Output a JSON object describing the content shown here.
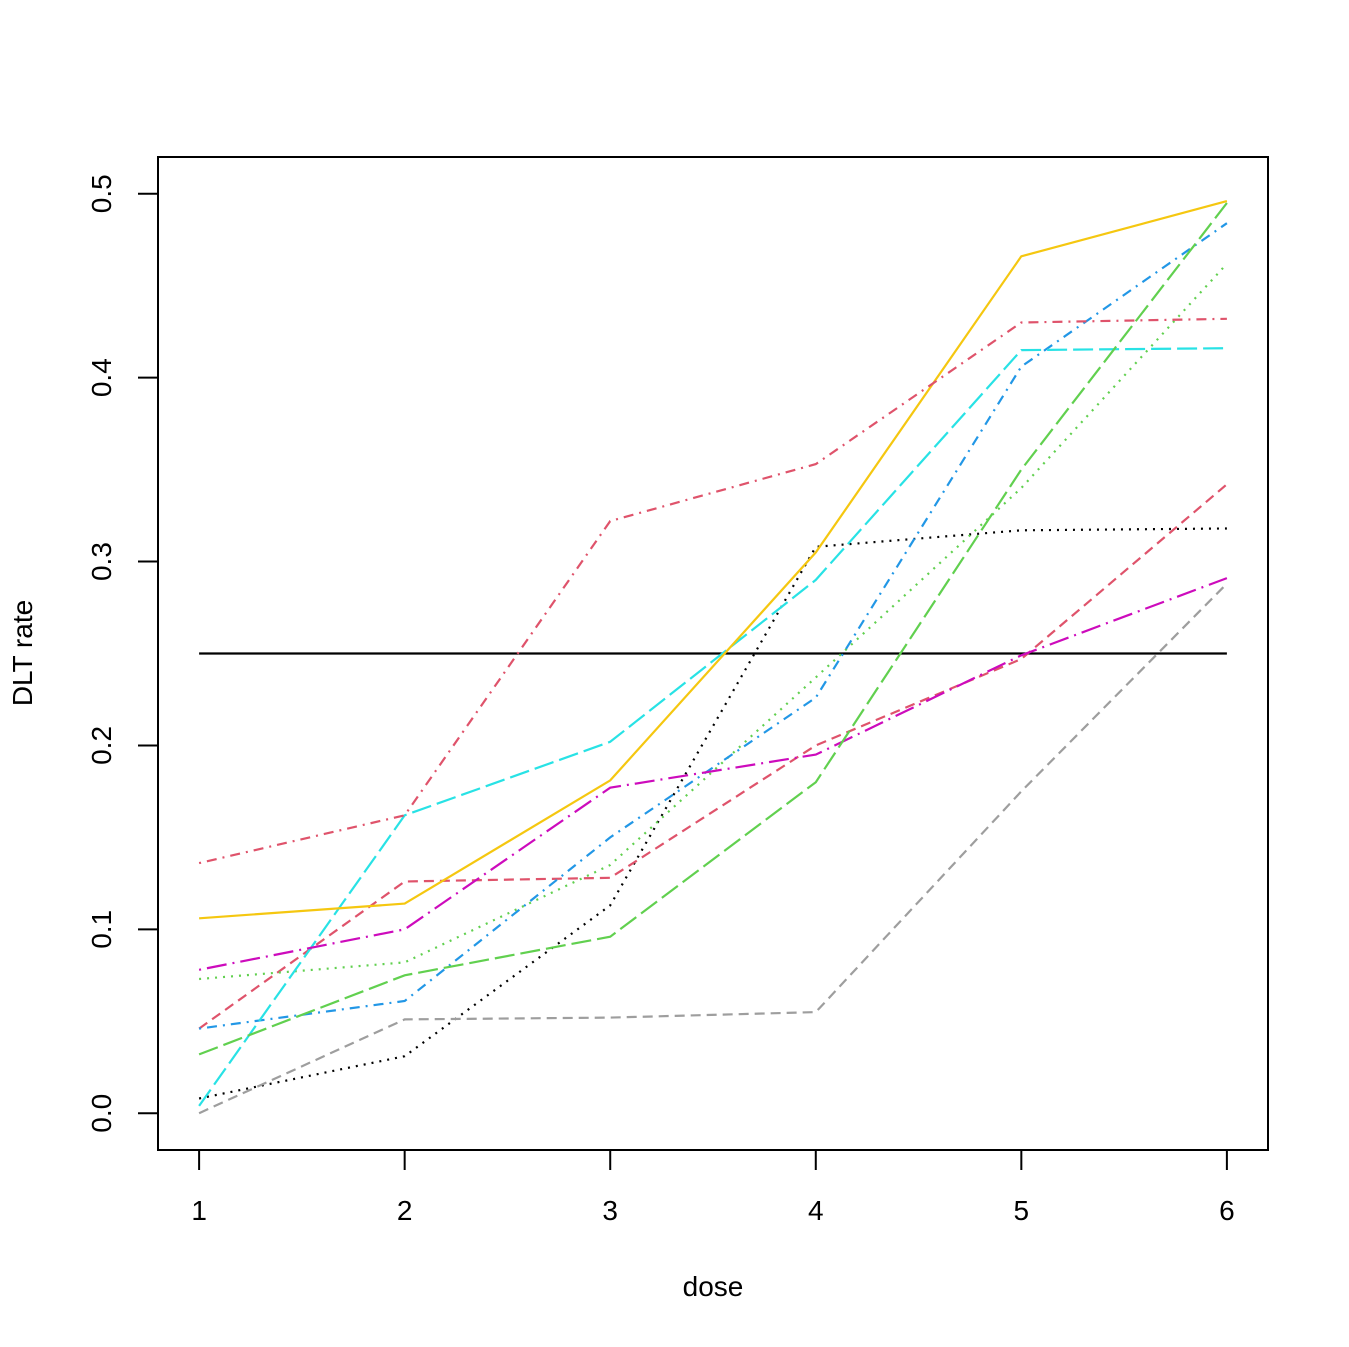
{
  "chart_data": {
    "type": "line",
    "title": "",
    "xlabel": "dose",
    "ylabel": "DLT rate",
    "x": [
      1,
      2,
      3,
      4,
      5,
      6
    ],
    "xticks": [
      "1",
      "2",
      "3",
      "4",
      "5",
      "6"
    ],
    "yticks": [
      "0.0",
      "0.1",
      "0.2",
      "0.3",
      "0.4",
      "0.5"
    ],
    "xlim": [
      0.8,
      6.2
    ],
    "ylim": [
      -0.02,
      0.52
    ],
    "grid": false,
    "reference_line": {
      "y": 0.25,
      "color": "#000000"
    },
    "series": [
      {
        "color": "#000000",
        "dash": "2 6",
        "values": [
          0.008,
          0.031,
          0.113,
          0.308,
          0.317,
          0.318
        ]
      },
      {
        "color": "#DF536B",
        "dash": "10 6",
        "values": [
          0.046,
          0.126,
          0.128,
          0.2,
          0.247,
          0.342
        ]
      },
      {
        "color": "#61D04F",
        "dash": "2 6",
        "values": [
          0.073,
          0.082,
          0.135,
          0.237,
          0.34,
          0.462
        ]
      },
      {
        "color": "#2297E6",
        "dash": "2 6 10 6",
        "values": [
          0.046,
          0.061,
          0.15,
          0.226,
          0.406,
          0.484
        ]
      },
      {
        "color": "#28E2E5",
        "dash": "20 6",
        "values": [
          0.004,
          0.162,
          0.202,
          0.29,
          0.415,
          0.416
        ]
      },
      {
        "color": "#CD0BBC",
        "dash": "2 6 20 6",
        "values": [
          0.078,
          0.1,
          0.177,
          0.195,
          0.249,
          0.291
        ]
      },
      {
        "color": "#F5C710",
        "dash": "",
        "values": [
          0.106,
          0.114,
          0.181,
          0.305,
          0.466,
          0.496
        ]
      },
      {
        "color": "#9E9E9E",
        "dash": "10 6",
        "values": [
          0.0,
          0.051,
          0.052,
          0.055,
          0.175,
          0.288
        ]
      },
      {
        "color": "#DF536B",
        "dash": "2 6 10 6",
        "values": [
          0.136,
          0.162,
          0.322,
          0.353,
          0.43,
          0.432
        ]
      },
      {
        "color": "#61D04F",
        "dash": "20 6",
        "values": [
          0.032,
          0.075,
          0.096,
          0.18,
          0.35,
          0.495
        ]
      }
    ]
  }
}
